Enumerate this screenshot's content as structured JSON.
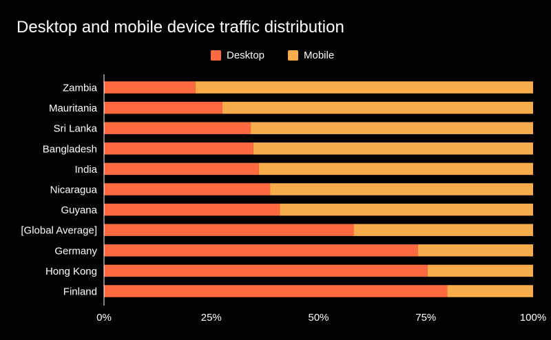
{
  "page": {
    "title": "Desktop and mobile device traffic distribution"
  },
  "legend": {
    "placement": "top-center",
    "items": [
      {
        "label": "Desktop",
        "color": "#ff6a40"
      },
      {
        "label": "Mobile",
        "color": "#f8ac4b"
      }
    ]
  },
  "chart_data": {
    "type": "bar",
    "orientation": "horizontal",
    "stacked": true,
    "title": "Desktop and mobile device traffic distribution",
    "xlabel": "",
    "ylabel": "",
    "xlim": [
      0,
      100
    ],
    "x_ticks": [
      "0%",
      "25%",
      "50%",
      "75%",
      "100%"
    ],
    "x_tick_values": [
      0,
      25,
      50,
      75,
      100
    ],
    "grid": false,
    "categories": [
      "Zambia",
      "Mauritania",
      "Sri Lanka",
      "Bangladesh",
      "India",
      "Nicaragua",
      "Guyana",
      "[Global Average]",
      "Germany",
      "Hong Kong",
      "Finland"
    ],
    "series": [
      {
        "name": "Desktop",
        "color": "#ff6a40",
        "values": [
          21.3,
          27.6,
          34.2,
          34.8,
          36.1,
          38.7,
          41.0,
          58.2,
          73.2,
          75.4,
          80.0
        ]
      },
      {
        "name": "Mobile",
        "color": "#f8ac4b",
        "values": [
          78.7,
          72.4,
          65.8,
          65.2,
          63.9,
          61.3,
          59.0,
          41.8,
          26.8,
          24.6,
          20.0
        ]
      }
    ]
  }
}
